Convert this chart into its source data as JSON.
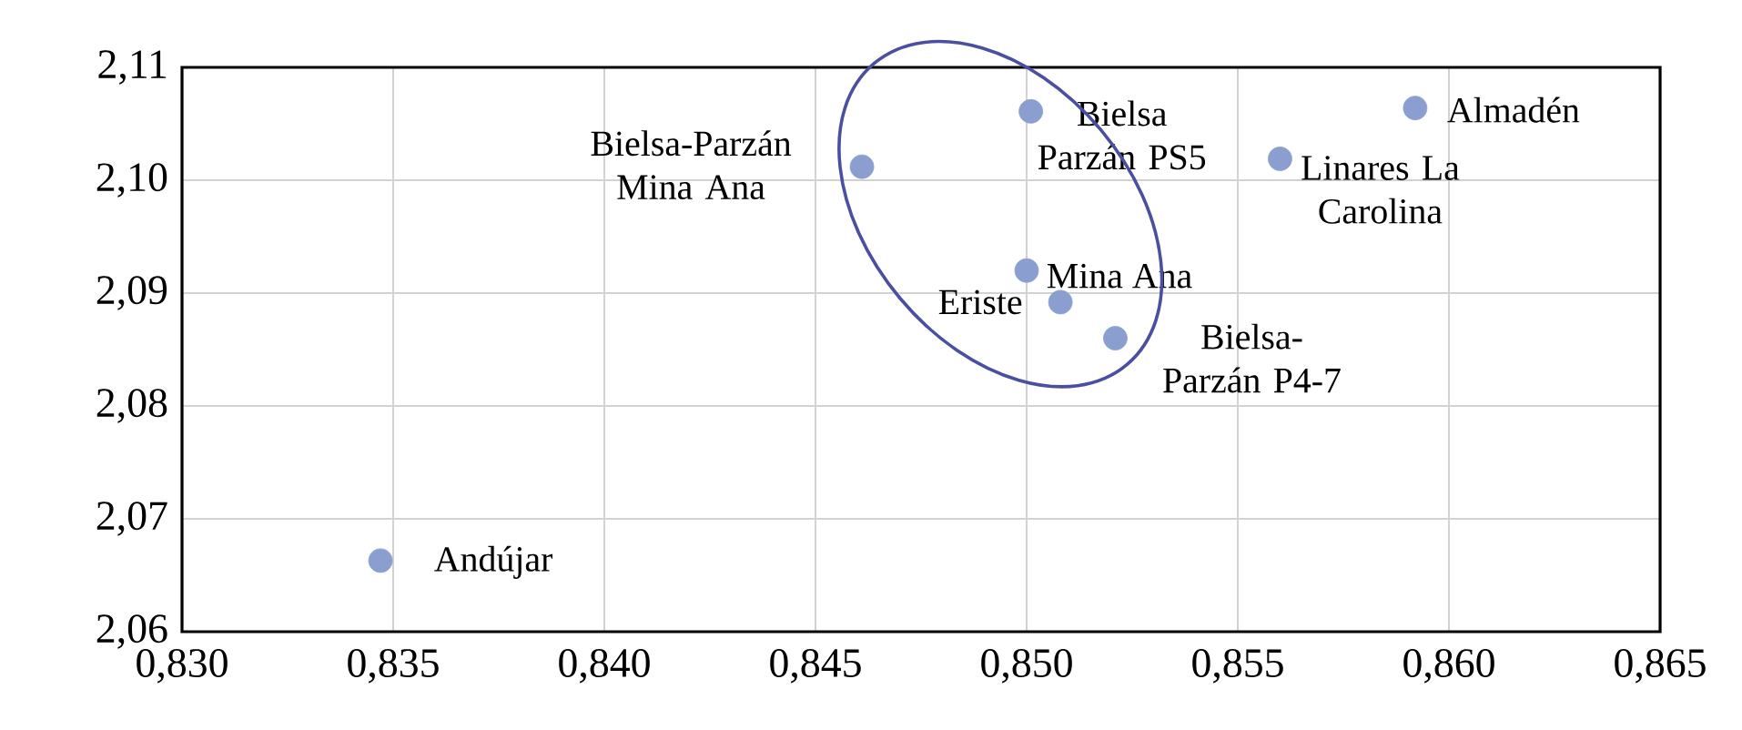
{
  "chart_data": {
    "type": "scatter",
    "x": [
      0.8347,
      0.8461,
      0.8501,
      0.85,
      0.8508,
      0.8521,
      0.856,
      0.8592
    ],
    "series": [
      {
        "color": "#8a9fcf",
        "values": [
          2.0663,
          2.1012,
          2.1061,
          2.092,
          2.0892,
          2.086,
          2.1019,
          2.1064
        ]
      }
    ],
    "xlim": [
      0.83,
      0.865
    ],
    "ylim": [
      2.06,
      2.11
    ],
    "xticks": [
      {
        "value": 0.83,
        "label": "0,830"
      },
      {
        "value": 0.835,
        "label": "0,835"
      },
      {
        "value": 0.84,
        "label": "0,840"
      },
      {
        "value": 0.845,
        "label": "0,845"
      },
      {
        "value": 0.85,
        "label": "0,850"
      },
      {
        "value": 0.855,
        "label": "0,855"
      },
      {
        "value": 0.86,
        "label": "0,860"
      },
      {
        "value": 0.865,
        "label": "0,865"
      }
    ],
    "yticks": [
      {
        "value": 2.06,
        "label": "2,06"
      },
      {
        "value": 2.07,
        "label": "2,07"
      },
      {
        "value": 2.08,
        "label": "2,08"
      },
      {
        "value": 2.09,
        "label": "2,09"
      },
      {
        "value": 2.1,
        "label": "2,10"
      },
      {
        "value": 2.11,
        "label": "2,11"
      }
    ],
    "annotations": [
      {
        "text": "Andújar",
        "x": 0.8347,
        "y": 2.0663
      },
      {
        "text": "Bielsa-Parzán Mina Ana",
        "x": 0.8461,
        "y": 2.1012
      },
      {
        "text": "Bielsa Parzán PS5",
        "x": 0.8501,
        "y": 2.1061
      },
      {
        "text": "Mina Ana",
        "x": 0.85,
        "y": 2.092
      },
      {
        "text": "Eriste",
        "x": 0.8508,
        "y": 2.0892
      },
      {
        "text": "Bielsa-Parzán P4-7",
        "x": 0.8521,
        "y": 2.086
      },
      {
        "text": "Linares La Carolina",
        "x": 0.856,
        "y": 2.1019
      },
      {
        "text": "Almadén",
        "x": 0.8592,
        "y": 2.1064
      }
    ],
    "grid": true,
    "marker": "circle"
  }
}
